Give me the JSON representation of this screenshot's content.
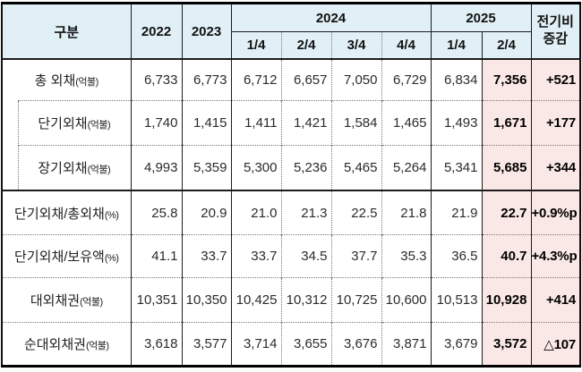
{
  "chart_data": {
    "type": "table",
    "corner_label": "구분",
    "year_columns": [
      "2022",
      "2023"
    ],
    "groups": [
      {
        "label": "2024",
        "quarters": [
          "1/4",
          "2/4",
          "3/4",
          "4/4"
        ]
      },
      {
        "label": "2025",
        "quarters": [
          "1/4",
          "2/4"
        ]
      }
    ],
    "change_header": {
      "line1": "전기비",
      "line2": "증감"
    },
    "rows": [
      {
        "label": "총 외채",
        "unit": "(억불)",
        "indent": false,
        "values": [
          "6,733",
          "6,773",
          "6,712",
          "6,657",
          "7,050",
          "6,729",
          "6,834",
          "7,356"
        ],
        "change": "+521"
      },
      {
        "label": "단기외채",
        "unit": "(억불)",
        "indent": true,
        "values": [
          "1,740",
          "1,415",
          "1,411",
          "1,421",
          "1,584",
          "1,465",
          "1,493",
          "1,671"
        ],
        "change": "+177"
      },
      {
        "label": "장기외채",
        "unit": "(억불)",
        "indent": true,
        "values": [
          "4,993",
          "5,359",
          "5,300",
          "5,236",
          "5,465",
          "5,264",
          "5,341",
          "5,685"
        ],
        "change": "+344"
      },
      {
        "label": "단기외채/총외채",
        "unit": "(%)",
        "indent": false,
        "values": [
          "25.8",
          "20.9",
          "21.0",
          "21.3",
          "22.5",
          "21.8",
          "21.9",
          "22.7"
        ],
        "change": "+0.9%p"
      },
      {
        "label": "단기외채/보유액",
        "unit": "(%)",
        "indent": false,
        "values": [
          "41.1",
          "33.7",
          "33.7",
          "34.5",
          "37.7",
          "35.3",
          "36.5",
          "40.7"
        ],
        "change": "+4.3%p"
      },
      {
        "label": "대외채권",
        "unit": "(억불)",
        "indent": false,
        "values": [
          "10,351",
          "10,350",
          "10,425",
          "10,312",
          "10,725",
          "10,600",
          "10,513",
          "10,928"
        ],
        "change": "+414"
      },
      {
        "label": "순대외채권",
        "unit": "(억불)",
        "indent": false,
        "values": [
          "3,618",
          "3,577",
          "3,714",
          "3,655",
          "3,676",
          "3,871",
          "3,679",
          "3,572"
        ],
        "change": "△107"
      }
    ],
    "colors": {
      "header_bg": "#e1f0f6",
      "highlight_bg": "#fae8e6",
      "border_dark": "#000000"
    }
  }
}
